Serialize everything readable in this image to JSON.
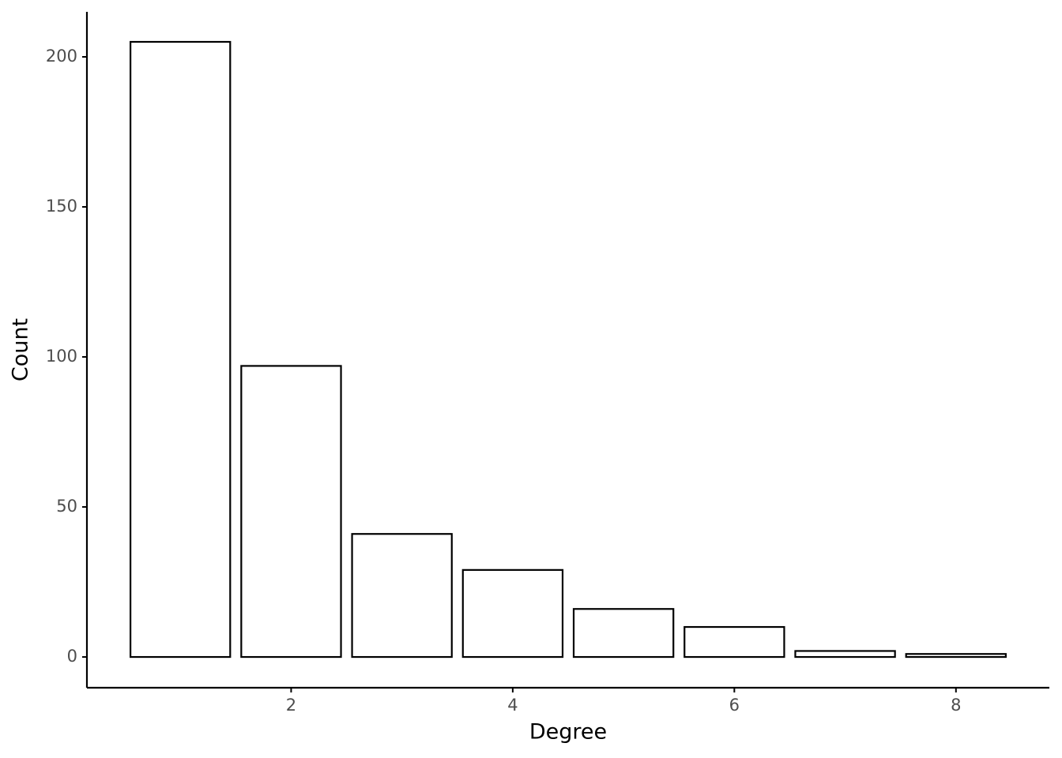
{
  "chart_data": {
    "type": "bar",
    "x_label": "Degree",
    "y_label": "Count",
    "x": [
      1,
      2,
      3,
      4,
      5,
      6,
      7,
      8
    ],
    "values": [
      205,
      97,
      41,
      29,
      16,
      10,
      2,
      1
    ],
    "color": "#ffffff",
    "edge_color": "#000000",
    "xlim": [
      0.157,
      8.843
    ],
    "xticks": [
      2,
      4,
      6,
      8
    ],
    "ylim": [
      -10.25,
      215
    ],
    "yticks": [
      0,
      50,
      100,
      150,
      200
    ],
    "grid": false
  }
}
